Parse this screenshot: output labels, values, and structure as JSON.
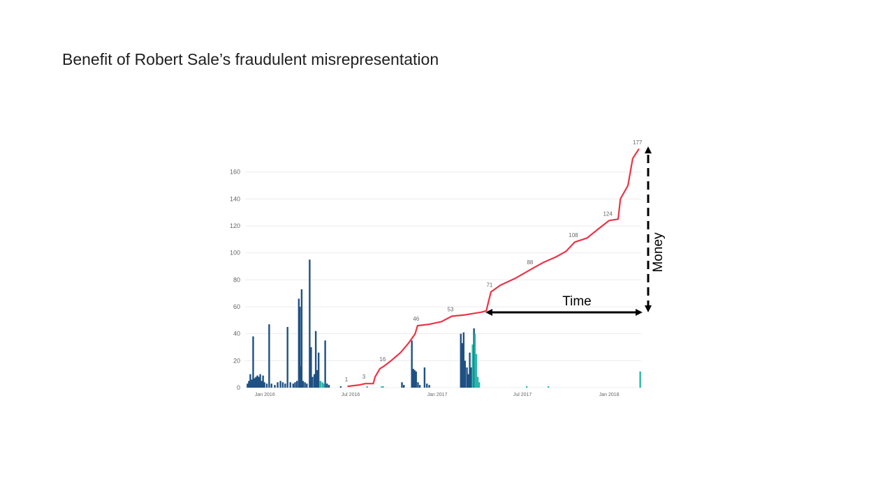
{
  "slide": {
    "title": "Benefit of Robert Sale’s fraudulent misrepresentation"
  },
  "annotations": {
    "time_label": "Time",
    "money_label": "Money"
  },
  "colors": {
    "line": "#ee3346",
    "bar_primary": "#1f5183",
    "bar_secondary": "#2ab7a9",
    "grid": "#ececec",
    "arrow": "#000000"
  },
  "chart_data": {
    "type": "line",
    "title": "",
    "xlabel": "",
    "ylabel": "",
    "ylim": [
      0,
      180
    ],
    "y_ticks": [
      0,
      20,
      40,
      60,
      80,
      100,
      120,
      140,
      160
    ],
    "x_tick_labels": [
      "Jan 2016",
      "Jul 2016",
      "Jan 2017",
      "Jul 2017",
      "Jan 2018"
    ],
    "x_tick_dates": [
      "2016-01-01",
      "2016-07-01",
      "2017-01-01",
      "2017-07-01",
      "2018-01-01"
    ],
    "xlim": [
      "2015-11-20",
      "2018-03-10"
    ],
    "grid": true,
    "line_series": {
      "points": [
        [
          "2016-06-25",
          1
        ],
        [
          "2016-07-20",
          2
        ],
        [
          "2016-08-01",
          3
        ],
        [
          "2016-08-18",
          3
        ],
        [
          "2016-08-22",
          8
        ],
        [
          "2016-09-01",
          14
        ],
        [
          "2016-09-10",
          16
        ],
        [
          "2016-09-25",
          20
        ],
        [
          "2016-10-15",
          26
        ],
        [
          "2016-11-01",
          33
        ],
        [
          "2016-11-15",
          40
        ],
        [
          "2016-11-20",
          46
        ],
        [
          "2016-12-15",
          47
        ],
        [
          "2017-01-10",
          49
        ],
        [
          "2017-02-01",
          53
        ],
        [
          "2017-03-01",
          54
        ],
        [
          "2017-04-05",
          56
        ],
        [
          "2017-04-15",
          57
        ],
        [
          "2017-04-25",
          71
        ],
        [
          "2017-05-15",
          76
        ],
        [
          "2017-06-15",
          81
        ],
        [
          "2017-07-20",
          88
        ],
        [
          "2017-08-15",
          93
        ],
        [
          "2017-09-10",
          97
        ],
        [
          "2017-10-01",
          101
        ],
        [
          "2017-10-20",
          108
        ],
        [
          "2017-11-15",
          111
        ],
        [
          "2017-12-10",
          118
        ],
        [
          "2018-01-01",
          124
        ],
        [
          "2018-01-20",
          125
        ],
        [
          "2018-01-25",
          140
        ],
        [
          "2018-02-10",
          150
        ],
        [
          "2018-02-20",
          170
        ],
        [
          "2018-03-05",
          177
        ]
      ],
      "labels": [
        {
          "x": "2016-06-25",
          "y": 1,
          "text": "1"
        },
        {
          "x": "2016-08-01",
          "y": 3,
          "text": "3"
        },
        {
          "x": "2016-09-10",
          "y": 16,
          "text": "16"
        },
        {
          "x": "2016-11-20",
          "y": 46,
          "text": "46"
        },
        {
          "x": "2017-02-01",
          "y": 53,
          "text": "53"
        },
        {
          "x": "2017-04-25",
          "y": 71,
          "text": "71"
        },
        {
          "x": "2017-07-20",
          "y": 88,
          "text": "88"
        },
        {
          "x": "2017-10-20",
          "y": 108,
          "text": "108"
        },
        {
          "x": "2018-01-01",
          "y": 124,
          "text": "124"
        },
        {
          "x": "2018-03-05",
          "y": 177,
          "text": "177"
        }
      ]
    },
    "bar_series": [
      {
        "color_key": "bar_primary",
        "bars": [
          [
            "2015-11-25",
            3
          ],
          [
            "2015-11-28",
            5
          ],
          [
            "2015-12-01",
            10
          ],
          [
            "2015-12-04",
            6
          ],
          [
            "2015-12-07",
            38
          ],
          [
            "2015-12-10",
            7
          ],
          [
            "2015-12-13",
            8
          ],
          [
            "2015-12-16",
            9
          ],
          [
            "2015-12-19",
            8
          ],
          [
            "2015-12-22",
            10
          ],
          [
            "2015-12-25",
            5
          ],
          [
            "2015-12-28",
            9
          ],
          [
            "2015-12-31",
            4
          ],
          [
            "2016-01-05",
            3
          ],
          [
            "2016-01-10",
            47
          ],
          [
            "2016-01-15",
            3
          ],
          [
            "2016-01-22",
            2
          ],
          [
            "2016-01-28",
            4
          ],
          [
            "2016-02-03",
            5
          ],
          [
            "2016-02-08",
            4
          ],
          [
            "2016-02-13",
            3
          ],
          [
            "2016-02-18",
            45
          ],
          [
            "2016-02-24",
            4
          ],
          [
            "2016-03-01",
            3
          ],
          [
            "2016-03-05",
            4
          ],
          [
            "2016-03-09",
            5
          ],
          [
            "2016-03-13",
            66
          ],
          [
            "2016-03-15",
            60
          ],
          [
            "2016-03-17",
            16
          ],
          [
            "2016-03-19",
            73
          ],
          [
            "2016-03-22",
            5
          ],
          [
            "2016-03-26",
            4
          ],
          [
            "2016-03-30",
            3
          ],
          [
            "2016-04-05",
            95
          ],
          [
            "2016-04-08",
            30
          ],
          [
            "2016-04-11",
            8
          ],
          [
            "2016-04-15",
            10
          ],
          [
            "2016-04-18",
            42
          ],
          [
            "2016-04-21",
            13
          ],
          [
            "2016-04-24",
            26
          ],
          [
            "2016-05-08",
            35
          ],
          [
            "2016-05-12",
            3
          ],
          [
            "2016-05-16",
            2
          ],
          [
            "2016-06-10",
            1
          ],
          [
            "2016-10-18",
            4
          ],
          [
            "2016-10-22",
            2
          ],
          [
            "2016-11-08",
            35
          ],
          [
            "2016-11-11",
            14
          ],
          [
            "2016-11-14",
            13
          ],
          [
            "2016-11-17",
            12
          ],
          [
            "2016-11-21",
            4
          ],
          [
            "2016-11-25",
            2
          ],
          [
            "2016-12-05",
            15
          ],
          [
            "2016-12-10",
            3
          ],
          [
            "2016-12-15",
            2
          ],
          [
            "2017-02-20",
            40
          ],
          [
            "2017-02-23",
            33
          ],
          [
            "2017-02-26",
            41
          ],
          [
            "2017-03-01",
            20
          ],
          [
            "2017-03-05",
            15
          ],
          [
            "2017-03-08",
            10
          ],
          [
            "2017-03-11",
            26
          ],
          [
            "2017-03-14",
            15
          ],
          [
            "2017-03-20",
            44
          ]
        ]
      },
      {
        "color_key": "bar_secondary",
        "bars": [
          [
            "2016-04-28",
            5
          ],
          [
            "2016-05-02",
            4
          ],
          [
            "2016-05-05",
            3
          ],
          [
            "2016-08-05",
            1
          ],
          [
            "2016-09-05",
            1
          ],
          [
            "2016-09-08",
            1
          ],
          [
            "2017-03-17",
            32
          ],
          [
            "2017-03-22",
            40
          ],
          [
            "2017-03-25",
            25
          ],
          [
            "2017-03-28",
            8
          ],
          [
            "2017-03-31",
            4
          ],
          [
            "2017-07-10",
            1
          ],
          [
            "2017-08-25",
            1
          ],
          [
            "2018-03-08",
            12
          ]
        ]
      }
    ]
  }
}
